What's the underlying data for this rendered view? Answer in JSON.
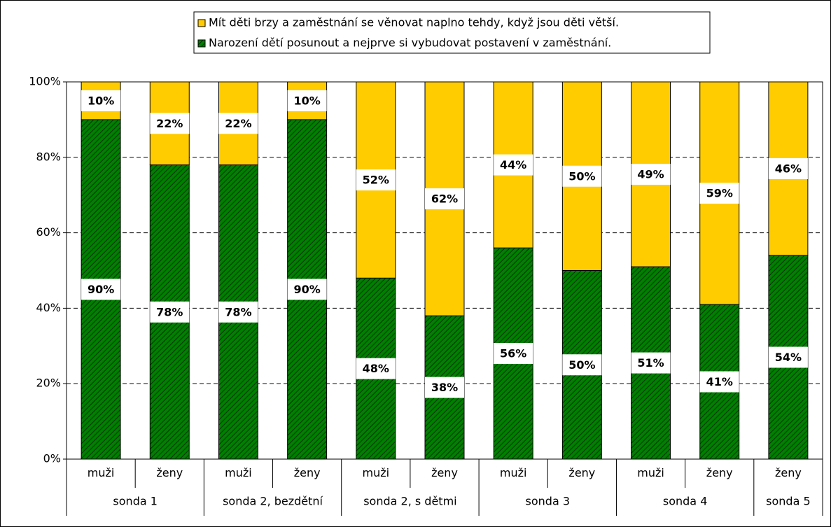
{
  "chart_data": {
    "type": "stacked_bar",
    "groups": [
      {
        "name": "sonda 1",
        "categories": [
          "muži",
          "ženy"
        ]
      },
      {
        "name": "sonda 2, bezdětní",
        "categories": [
          "muži",
          "ženy"
        ]
      },
      {
        "name": "sonda 2, s dětmi",
        "categories": [
          "muži",
          "ženy"
        ]
      },
      {
        "name": "sonda 3",
        "categories": [
          "muži",
          "ženy"
        ]
      },
      {
        "name": "sonda 4",
        "categories": [
          "muži",
          "ženy"
        ]
      },
      {
        "name": "sonda 5",
        "categories": [
          "ženy"
        ]
      }
    ],
    "series": [
      {
        "name": "Narození dětí posunout a nejprve si vybudovat postavení v zaměstnání.",
        "color": "#008000",
        "values": [
          90,
          78,
          78,
          90,
          48,
          38,
          56,
          50,
          51,
          41,
          54
        ],
        "value_labels": [
          "90%",
          "78%",
          "78%",
          "90%",
          "48%",
          "38%",
          "56%",
          "50%",
          "51%",
          "41%",
          "54%"
        ]
      },
      {
        "name": "Mít děti brzy a zaměstnání se věnovat naplno tehdy, když jsou děti větší.",
        "color": "#FFCC00",
        "values": [
          10,
          22,
          22,
          10,
          52,
          62,
          44,
          50,
          49,
          59,
          46
        ],
        "value_labels": [
          "10%",
          "22%",
          "22%",
          "10%",
          "52%",
          "62%",
          "44%",
          "50%",
          "49%",
          "59%",
          "46%"
        ]
      }
    ],
    "ylim": [
      0,
      100
    ],
    "yticks": [
      {
        "value": 0,
        "label": "0%"
      },
      {
        "value": 20,
        "label": "20%"
      },
      {
        "value": 40,
        "label": "40%"
      },
      {
        "value": 60,
        "label": "60%"
      },
      {
        "value": 80,
        "label": "80%"
      },
      {
        "value": 100,
        "label": "100%"
      }
    ],
    "grid": true,
    "legend": "top"
  }
}
